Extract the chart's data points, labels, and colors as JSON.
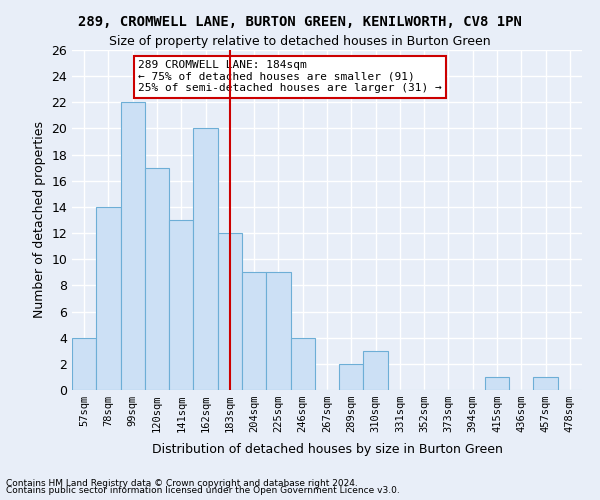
{
  "title1": "289, CROMWELL LANE, BURTON GREEN, KENILWORTH, CV8 1PN",
  "title2": "Size of property relative to detached houses in Burton Green",
  "xlabel": "Distribution of detached houses by size in Burton Green",
  "ylabel": "Number of detached properties",
  "bins": [
    "57sqm",
    "78sqm",
    "99sqm",
    "120sqm",
    "141sqm",
    "162sqm",
    "183sqm",
    "204sqm",
    "225sqm",
    "246sqm",
    "267sqm",
    "289sqm",
    "310sqm",
    "331sqm",
    "352sqm",
    "373sqm",
    "394sqm",
    "415sqm",
    "436sqm",
    "457sqm",
    "478sqm"
  ],
  "values": [
    4,
    14,
    22,
    17,
    13,
    20,
    12,
    9,
    9,
    4,
    0,
    2,
    3,
    0,
    0,
    0,
    0,
    1,
    0,
    1,
    0
  ],
  "bar_color": "#cce0f5",
  "bar_edge_color": "#6daed6",
  "vline_x": 6,
  "vline_color": "#cc0000",
  "annotation_text": "289 CROMWELL LANE: 184sqm\n← 75% of detached houses are smaller (91)\n25% of semi-detached houses are larger (31) →",
  "annotation_box_color": "#ffffff",
  "annotation_box_edge_color": "#cc0000",
  "ylim": [
    0,
    26
  ],
  "yticks": [
    0,
    2,
    4,
    6,
    8,
    10,
    12,
    14,
    16,
    18,
    20,
    22,
    24,
    26
  ],
  "background_color": "#e8eef8",
  "grid_color": "#ffffff",
  "footer1": "Contains HM Land Registry data © Crown copyright and database right 2024.",
  "footer2": "Contains public sector information licensed under the Open Government Licence v3.0."
}
